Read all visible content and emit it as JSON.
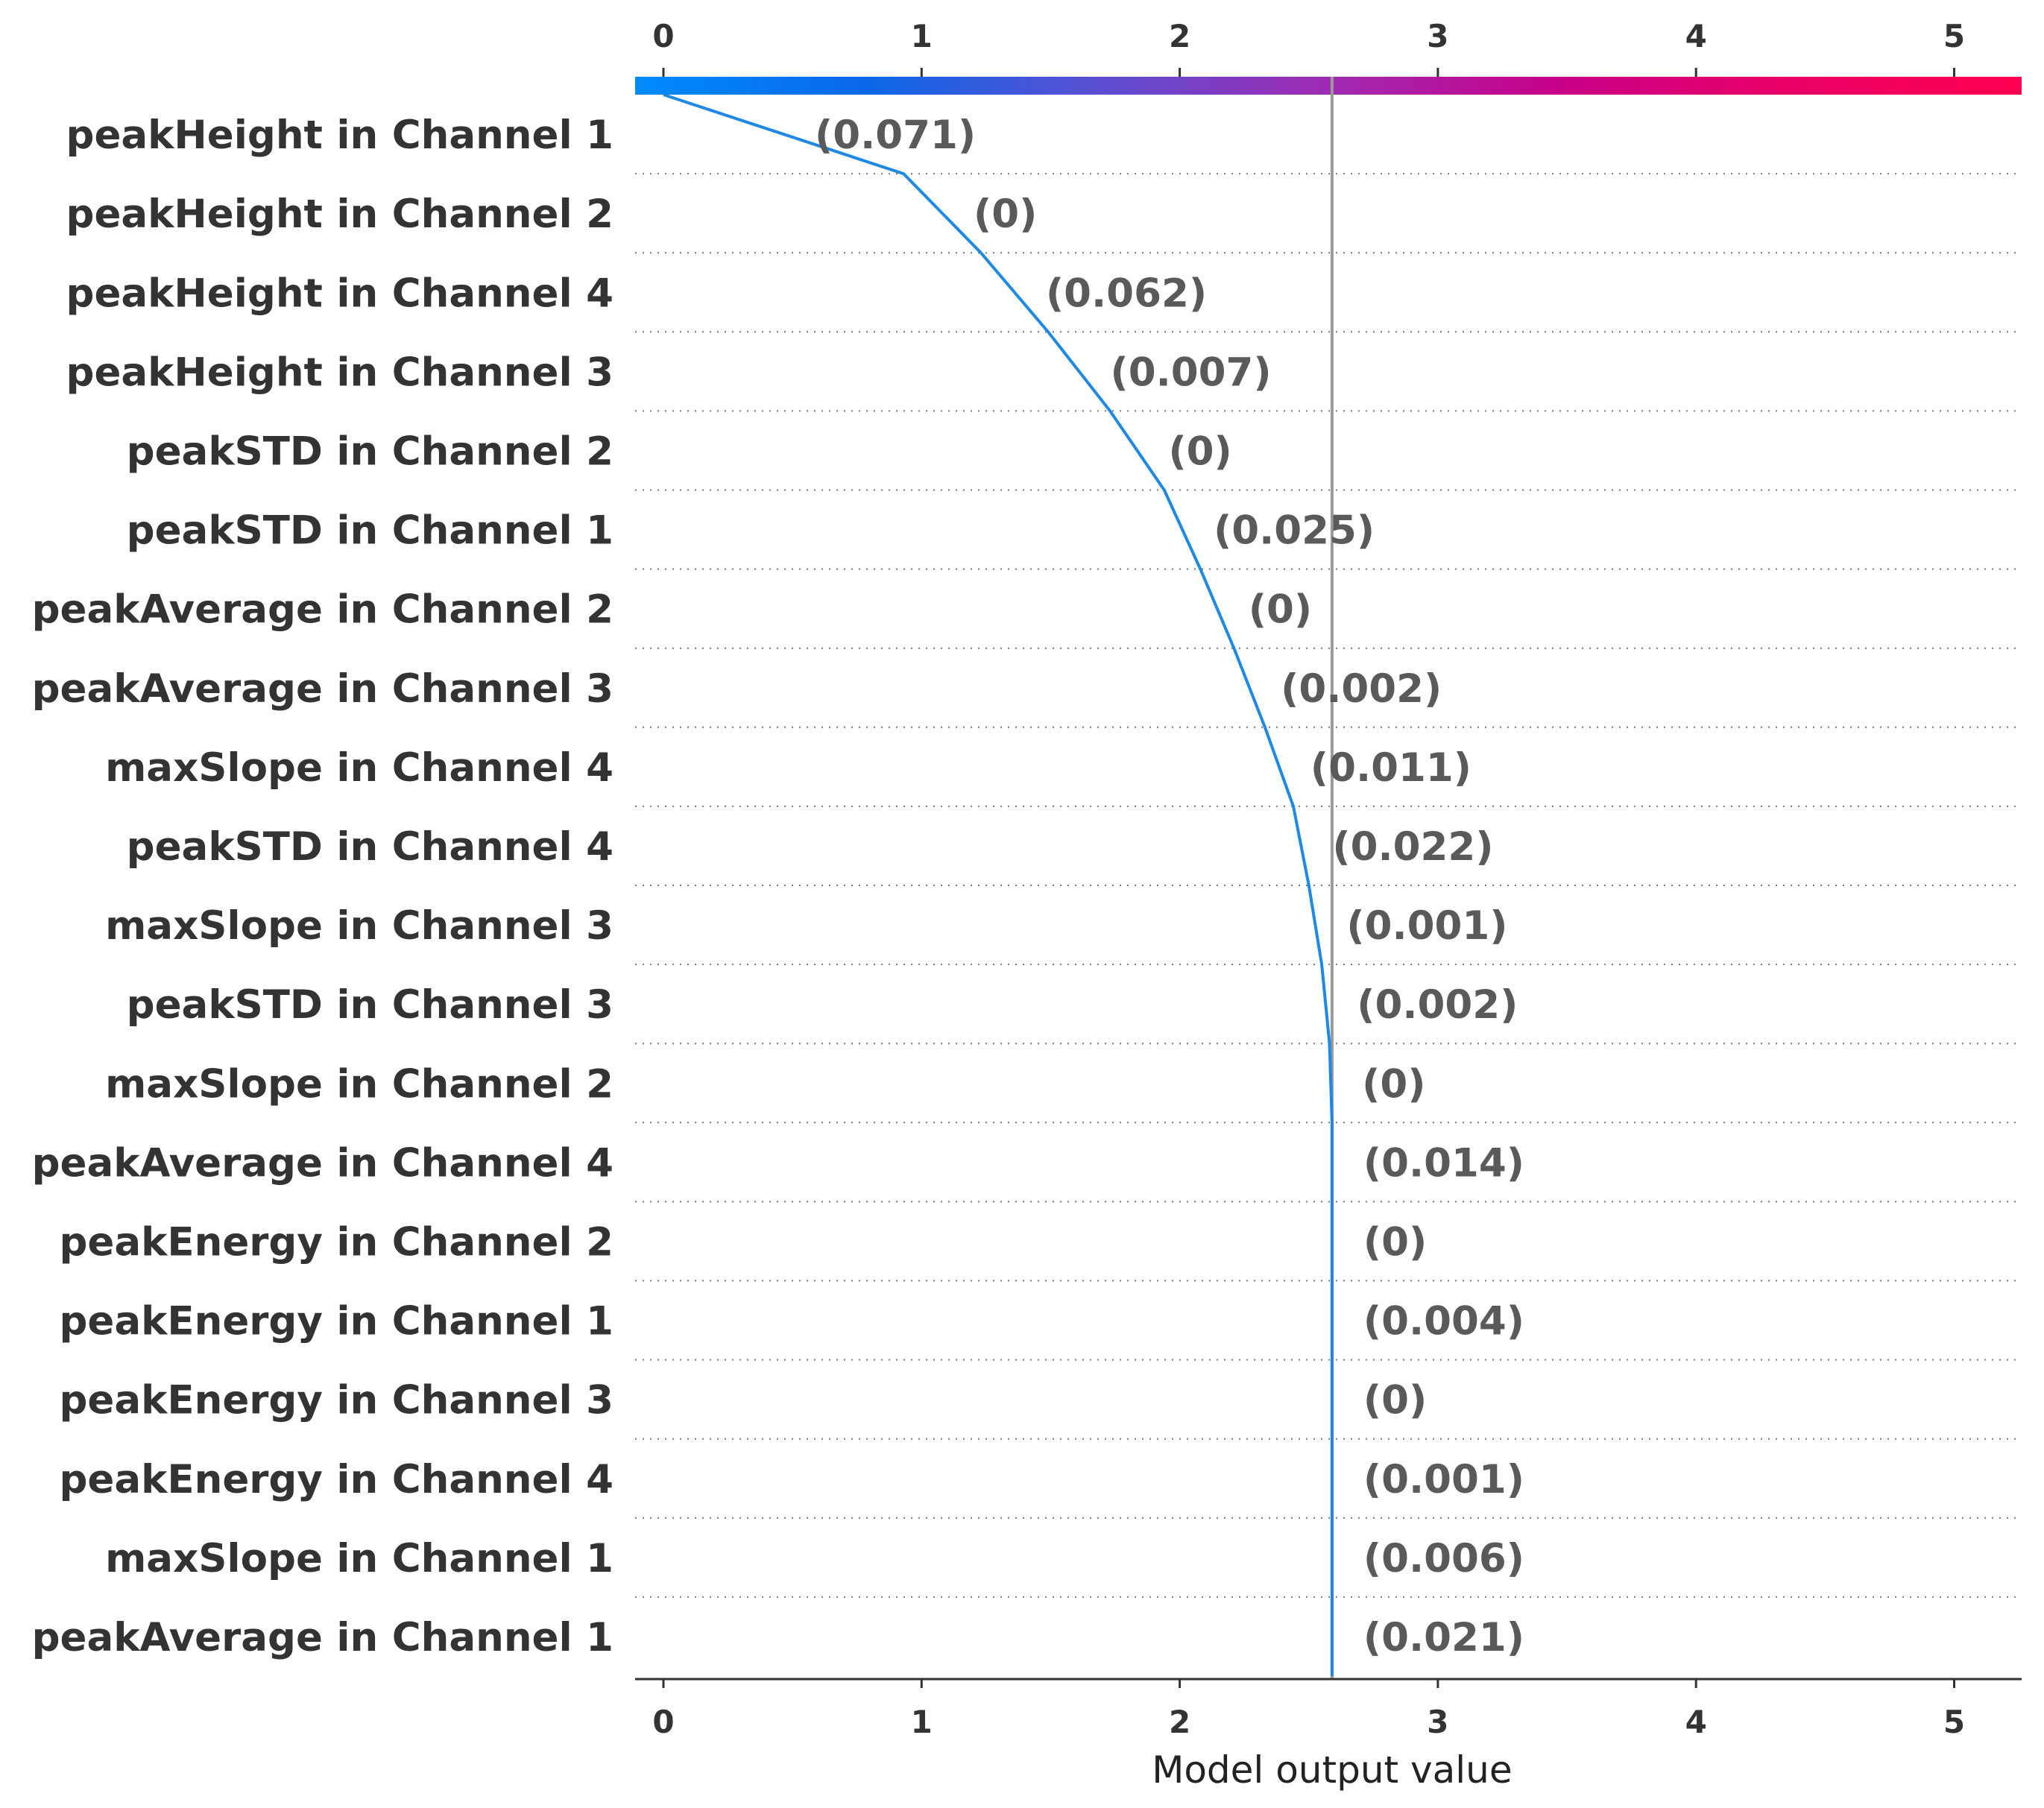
{
  "chart_data": {
    "type": "line",
    "xlabel": "Model output value",
    "xlim": [
      -0.11,
      5.28
    ],
    "xticks": [
      0,
      1,
      2,
      3,
      4,
      5
    ],
    "base_value": 0,
    "model_output": 2.59,
    "colorbar": {
      "colors": [
        "#008bfb",
        "#0a68e8",
        "#5b4fd2",
        "#9f2bb3",
        "#c80088",
        "#e90066",
        "#ff0051"
      ]
    },
    "line_color": "#1e88e5",
    "reference_line_color": "#999999",
    "features": [
      {
        "name": "peakHeight in Channel 1",
        "value_label": "(0.071)",
        "cumulative": 0.93
      },
      {
        "name": "peakHeight in Channel 2",
        "value_label": "(0)",
        "cumulative": 1.23
      },
      {
        "name": "peakHeight in Channel 4",
        "value_label": "(0.062)",
        "cumulative": 1.49
      },
      {
        "name": "peakHeight in Channel 3",
        "value_label": "(0.007)",
        "cumulative": 1.73
      },
      {
        "name": "peakSTD in Channel 2",
        "value_label": "(0)",
        "cumulative": 1.94
      },
      {
        "name": "peakSTD in Channel 1",
        "value_label": "(0.025)",
        "cumulative": 2.08
      },
      {
        "name": "peakAverage in Channel 2",
        "value_label": "(0)",
        "cumulative": 2.21
      },
      {
        "name": "peakAverage in Channel 3",
        "value_label": "(0.002)",
        "cumulative": 2.33
      },
      {
        "name": "maxSlope in Channel 4",
        "value_label": "(0.011)",
        "cumulative": 2.44
      },
      {
        "name": "peakSTD in Channel 4",
        "value_label": "(0.022)",
        "cumulative": 2.5
      },
      {
        "name": "maxSlope in Channel 3",
        "value_label": "(0.001)",
        "cumulative": 2.55
      },
      {
        "name": "peakSTD in Channel 3",
        "value_label": "(0.002)",
        "cumulative": 2.58
      },
      {
        "name": "maxSlope in Channel 2",
        "value_label": "(0)",
        "cumulative": 2.59
      },
      {
        "name": "peakAverage in Channel 4",
        "value_label": "(0.014)",
        "cumulative": 2.59
      },
      {
        "name": "peakEnergy in Channel 2",
        "value_label": "(0)",
        "cumulative": 2.59
      },
      {
        "name": "peakEnergy in Channel 1",
        "value_label": "(0.004)",
        "cumulative": 2.59
      },
      {
        "name": "peakEnergy in Channel 3",
        "value_label": "(0)",
        "cumulative": 2.59
      },
      {
        "name": "peakEnergy in Channel 4",
        "value_label": "(0.001)",
        "cumulative": 2.59
      },
      {
        "name": "maxSlope in Channel 1",
        "value_label": "(0.006)",
        "cumulative": 2.59
      },
      {
        "name": "peakAverage in Channel 1",
        "value_label": "(0.021)",
        "cumulative": 2.59
      }
    ]
  }
}
